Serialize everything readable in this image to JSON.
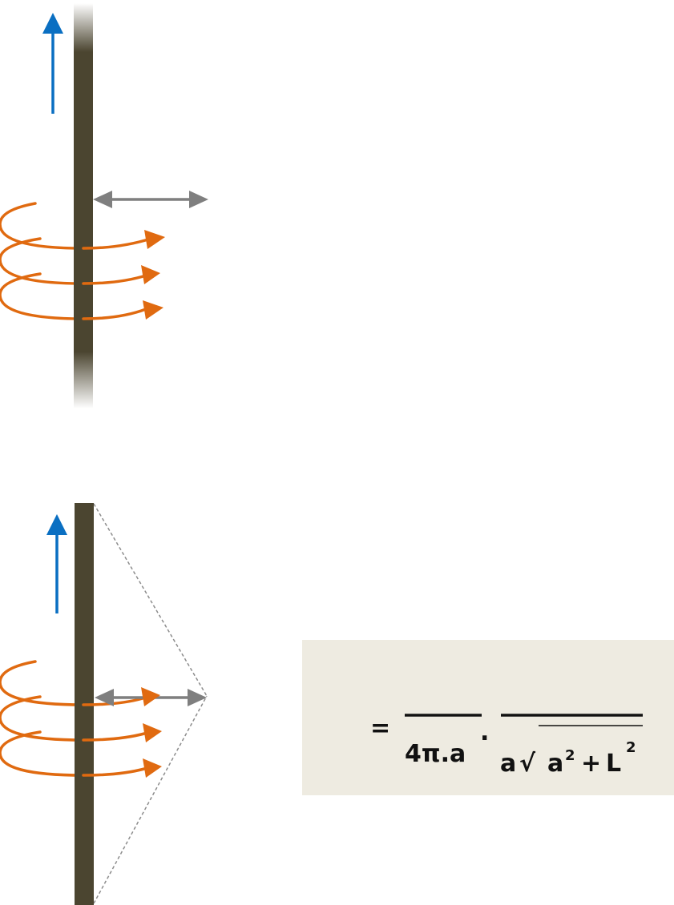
{
  "colors": {
    "wire": "#4b4530",
    "current_arrow": "#0a6fc2",
    "field_loops": "#e06a10",
    "distance_arrow": "#7f7f7f",
    "projection_lines": "#8c8c8c",
    "formula_box": "#eeebe1",
    "formula_text": "#111111"
  },
  "top_figure": {
    "description": "infinite straight wire",
    "current_arrow_icon": "up-arrow-icon",
    "field_loop_count": 3
  },
  "bottom_figure": {
    "description": "finite straight wire",
    "current_arrow_icon": "up-arrow-icon",
    "field_loop_count": 3
  },
  "formula": {
    "equals": "=",
    "left_denominator": "4π.a",
    "dot": ".",
    "right_denominator_prefix": "a",
    "root_symbol": "√",
    "root_base_a": "a",
    "root_exp_a": "2",
    "plus": "+",
    "root_base_L": "L",
    "root_exp_L": "2"
  }
}
